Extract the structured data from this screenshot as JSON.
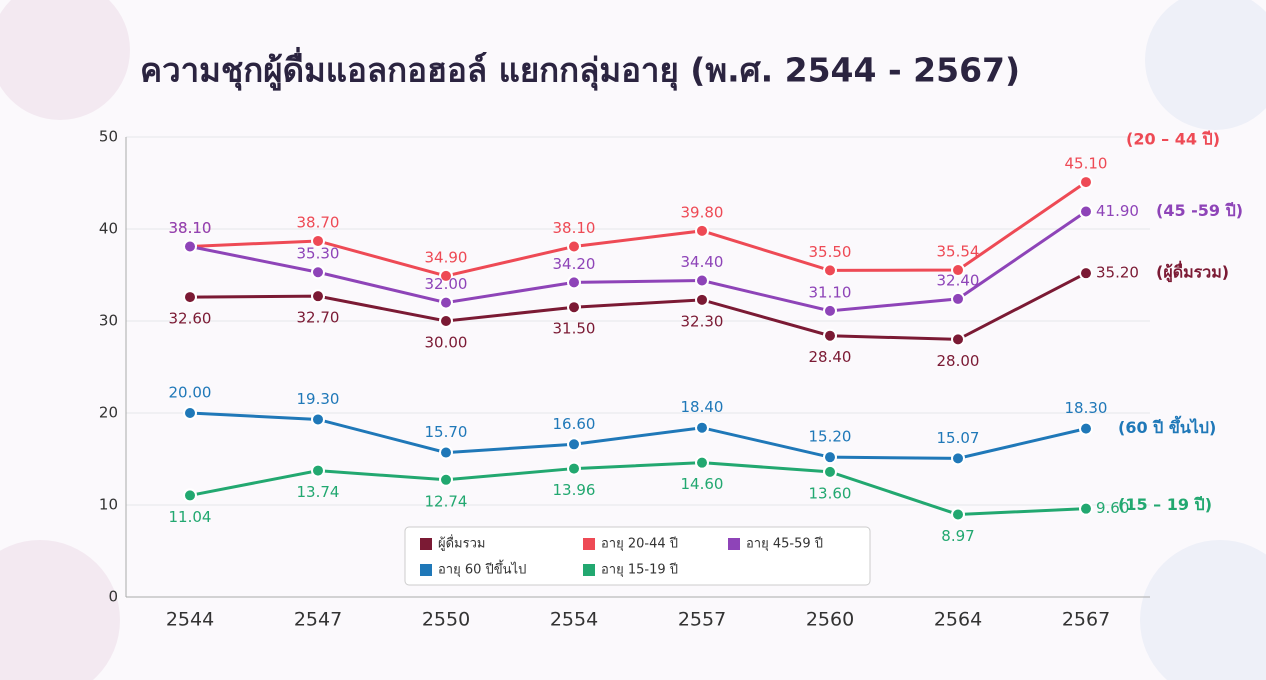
{
  "chart_data": {
    "type": "line",
    "title": "ความชุกผู้ดื่มแอลกอฮอล์ แยกกลุ่มอายุ (พ.ศ. 2544 - 2567)",
    "categories": [
      "2544",
      "2547",
      "2550",
      "2554",
      "2557",
      "2560",
      "2564",
      "2567"
    ],
    "ylim": [
      0,
      50
    ],
    "yticks": [
      0,
      10,
      20,
      30,
      40,
      50
    ],
    "grid": true,
    "series": [
      {
        "name": "ผู้ดื่มรวม",
        "color": "#7b1a34",
        "annotation": "(ผู้ดื่มรวม)",
        "values": [
          32.6,
          32.7,
          30.0,
          31.5,
          32.3,
          28.4,
          28.0,
          35.2
        ],
        "value_labels": [
          "32.60",
          "32.70",
          "30.00",
          "31.50",
          "32.30",
          "28.40",
          "28.00",
          "35.20"
        ]
      },
      {
        "name": "อายุ 20-44 ปี",
        "color": "#ee4a55",
        "annotation": "(20 – 44 ปี)",
        "values": [
          38.1,
          38.7,
          34.9,
          38.1,
          39.8,
          35.5,
          35.54,
          45.1
        ],
        "value_labels": [
          "38.10",
          "38.70",
          "34.90",
          "38.10",
          "39.80",
          "35.50",
          "35.54",
          "45.10"
        ]
      },
      {
        "name": "อายุ 45-59 ปี",
        "color": "#8e44b8",
        "annotation": "(45 -59 ปี)",
        "values": [
          38.1,
          35.3,
          32.0,
          34.2,
          34.4,
          31.1,
          32.4,
          41.9
        ],
        "value_labels": [
          "38.10",
          "35.30",
          "32.00",
          "34.20",
          "34.40",
          "31.10",
          "32.40",
          "41.90"
        ]
      },
      {
        "name": "อายุ 60 ปีขึ้นไป",
        "color": "#1f78b8",
        "annotation": "(60 ปี ขึ้นไป)",
        "values": [
          20.0,
          19.3,
          15.7,
          16.6,
          18.4,
          15.2,
          15.07,
          18.3
        ],
        "value_labels": [
          "20.00",
          "19.30",
          "15.70",
          "16.60",
          "18.40",
          "15.20",
          "15.07",
          "18.30"
        ]
      },
      {
        "name": "อายุ 15-19 ปี",
        "color": "#22a870",
        "annotation": "(15 – 19 ปี)",
        "values": [
          11.04,
          13.74,
          12.74,
          13.96,
          14.6,
          13.6,
          8.97,
          9.6
        ],
        "value_labels": [
          "11.04",
          "13.74",
          "12.74",
          "13.96",
          "14.60",
          "13.60",
          "8.97",
          "9.60"
        ]
      }
    ]
  }
}
